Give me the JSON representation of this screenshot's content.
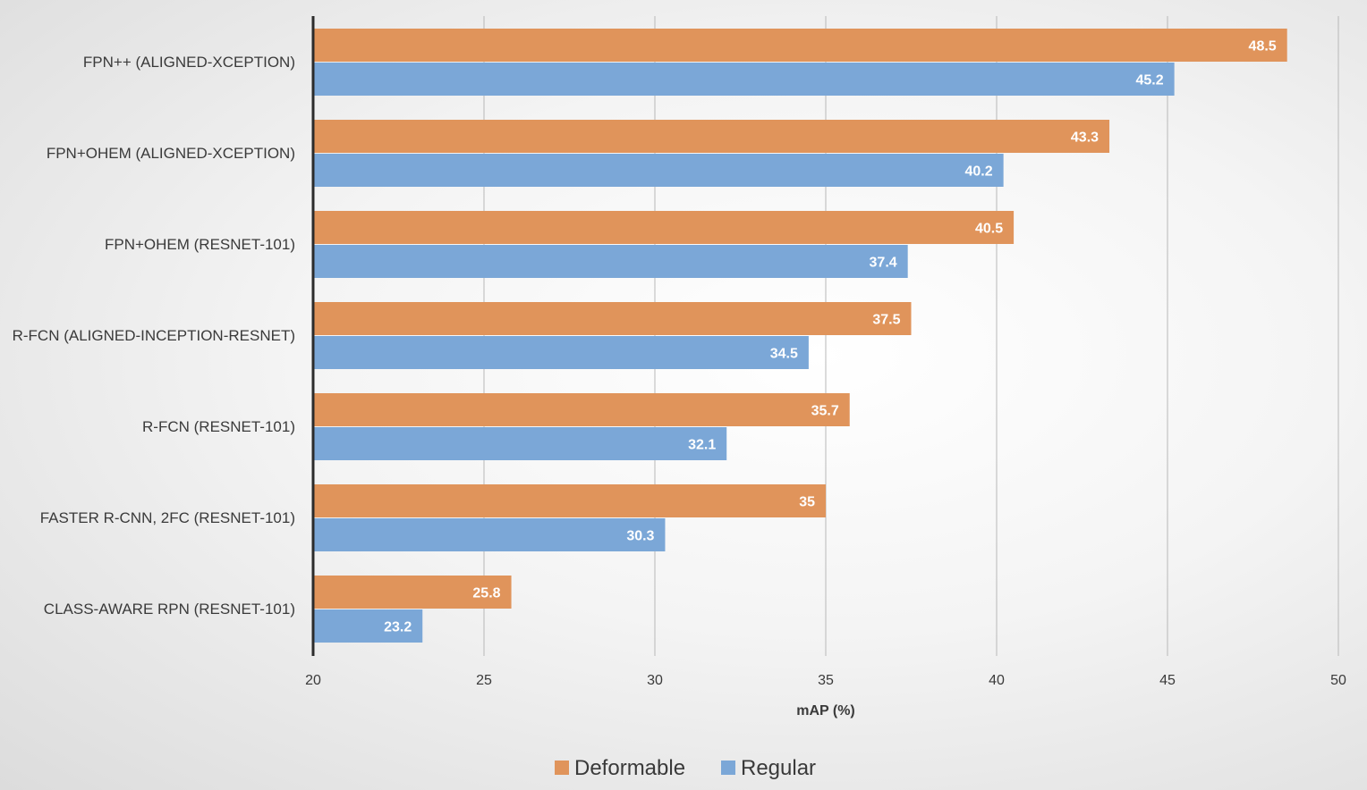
{
  "chart_data": {
    "type": "bar",
    "orientation": "horizontal",
    "categories": [
      "FPN++ (ALIGNED-XCEPTION)",
      "FPN+OHEM (ALIGNED-XCEPTION)",
      "FPN+OHEM (RESNET-101)",
      "R-FCN (ALIGNED-INCEPTION-RESNET)",
      "R-FCN (RESNET-101)",
      "FASTER R-CNN, 2FC (RESNET-101)",
      "CLASS-AWARE RPN (RESNET-101)"
    ],
    "series": [
      {
        "name": "Deformable",
        "color": "#E0945B",
        "values": [
          48.5,
          43.3,
          40.5,
          37.5,
          35.7,
          35,
          25.8
        ]
      },
      {
        "name": "Regular",
        "color": "#7BA7D7",
        "values": [
          45.2,
          40.2,
          37.4,
          34.5,
          32.1,
          30.3,
          23.2
        ]
      }
    ],
    "xlabel": "mAP (%)",
    "xlim": [
      20,
      50
    ],
    "xticks": [
      20,
      25,
      30,
      35,
      40,
      45,
      50
    ],
    "grid": "vertical",
    "legend": "bottom",
    "data_labels": true
  }
}
